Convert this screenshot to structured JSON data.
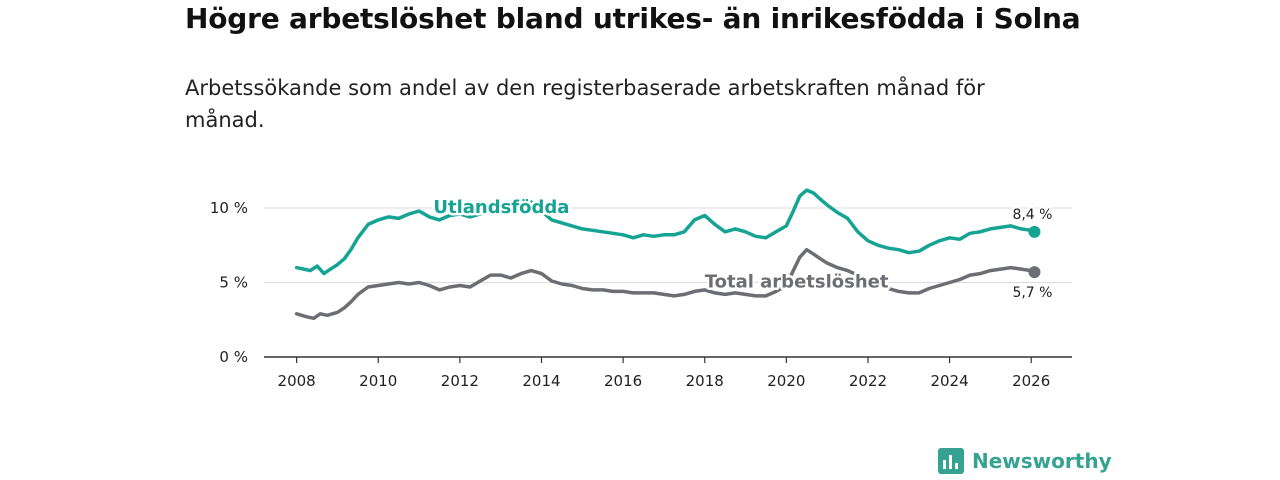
{
  "chart_data": {
    "type": "line",
    "title": "Högre arbetslöshet bland utrikes- än inrikesfödda i Solna",
    "subtitle": "Arbetssökande som andel av den registerbaserade arbetskraften månad för månad.",
    "xlabel": "",
    "ylabel": "",
    "xlim": [
      2007.2,
      2027.0
    ],
    "ylim": [
      0,
      10
    ],
    "x_ticks": [
      2008,
      2010,
      2012,
      2014,
      2016,
      2018,
      2020,
      2022,
      2024,
      2026
    ],
    "x_tick_labels": [
      "2008",
      "2010",
      "2012",
      "2014",
      "2016",
      "2018",
      "2020",
      "2022",
      "2024",
      "2026"
    ],
    "y_ticks": [
      0,
      5,
      10
    ],
    "y_tick_labels": [
      "0 %",
      "5 %",
      "10 %"
    ],
    "grid": true,
    "series": [
      {
        "name": "Utlandsfödda",
        "color": "#15a394",
        "end_label": "8,4 %",
        "x": [
          2008.0,
          2008.33,
          2008.5,
          2008.67,
          2008.83,
          2009.0,
          2009.17,
          2009.33,
          2009.5,
          2009.75,
          2010.0,
          2010.25,
          2010.5,
          2010.75,
          2011.0,
          2011.25,
          2011.5,
          2011.75,
          2012.0,
          2012.25,
          2012.5,
          2012.75,
          2013.0,
          2013.25,
          2013.5,
          2013.75,
          2014.0,
          2014.25,
          2014.5,
          2014.75,
          2015.0,
          2015.25,
          2015.5,
          2015.75,
          2016.0,
          2016.25,
          2016.5,
          2016.75,
          2017.0,
          2017.25,
          2017.5,
          2017.75,
          2018.0,
          2018.25,
          2018.5,
          2018.75,
          2019.0,
          2019.25,
          2019.5,
          2019.75,
          2020.0,
          2020.17,
          2020.33,
          2020.5,
          2020.67,
          2020.83,
          2021.0,
          2021.25,
          2021.5,
          2021.75,
          2022.0,
          2022.25,
          2022.5,
          2022.75,
          2023.0,
          2023.25,
          2023.5,
          2023.75,
          2024.0,
          2024.25,
          2024.5,
          2024.75,
          2025.0,
          2025.25,
          2025.5,
          2025.75,
          2026.0,
          2026.08
        ],
        "values": [
          6.0,
          5.8,
          6.1,
          5.6,
          5.9,
          6.2,
          6.6,
          7.2,
          8.0,
          8.9,
          9.2,
          9.4,
          9.3,
          9.6,
          9.8,
          9.4,
          9.2,
          9.5,
          9.6,
          9.4,
          9.6,
          10.0,
          10.2,
          10.1,
          10.3,
          10.4,
          9.8,
          9.2,
          9.0,
          8.8,
          8.6,
          8.5,
          8.4,
          8.3,
          8.2,
          8.0,
          8.2,
          8.1,
          8.2,
          8.2,
          8.4,
          9.2,
          9.5,
          8.9,
          8.4,
          8.6,
          8.4,
          8.1,
          8.0,
          8.4,
          8.8,
          9.8,
          10.8,
          11.2,
          11.0,
          10.6,
          10.2,
          9.7,
          9.3,
          8.4,
          7.8,
          7.5,
          7.3,
          7.2,
          7.0,
          7.1,
          7.5,
          7.8,
          8.0,
          7.9,
          8.3,
          8.4,
          8.6,
          8.7,
          8.8,
          8.6,
          8.5,
          8.4
        ]
      },
      {
        "name": "Total arbetslöshet",
        "color": "#6d6e74",
        "end_label": "5,7 %",
        "x": [
          2008.0,
          2008.25,
          2008.42,
          2008.58,
          2008.75,
          2009.0,
          2009.17,
          2009.33,
          2009.5,
          2009.75,
          2010.0,
          2010.25,
          2010.5,
          2010.75,
          2011.0,
          2011.25,
          2011.5,
          2011.75,
          2012.0,
          2012.25,
          2012.5,
          2012.75,
          2013.0,
          2013.25,
          2013.5,
          2013.75,
          2014.0,
          2014.25,
          2014.5,
          2014.75,
          2015.0,
          2015.25,
          2015.5,
          2015.75,
          2016.0,
          2016.25,
          2016.5,
          2016.75,
          2017.0,
          2017.25,
          2017.5,
          2017.75,
          2018.0,
          2018.25,
          2018.5,
          2018.75,
          2019.0,
          2019.25,
          2019.5,
          2019.75,
          2020.0,
          2020.17,
          2020.33,
          2020.5,
          2020.67,
          2020.83,
          2021.0,
          2021.25,
          2021.5,
          2021.75,
          2022.0,
          2022.25,
          2022.5,
          2022.75,
          2023.0,
          2023.25,
          2023.5,
          2023.75,
          2024.0,
          2024.25,
          2024.5,
          2024.75,
          2025.0,
          2025.25,
          2025.5,
          2025.75,
          2026.0,
          2026.08
        ],
        "values": [
          2.9,
          2.7,
          2.6,
          2.9,
          2.8,
          3.0,
          3.3,
          3.7,
          4.2,
          4.7,
          4.8,
          4.9,
          5.0,
          4.9,
          5.0,
          4.8,
          4.5,
          4.7,
          4.8,
          4.7,
          5.1,
          5.5,
          5.5,
          5.3,
          5.6,
          5.8,
          5.6,
          5.1,
          4.9,
          4.8,
          4.6,
          4.5,
          4.5,
          4.4,
          4.4,
          4.3,
          4.3,
          4.3,
          4.2,
          4.1,
          4.2,
          4.4,
          4.5,
          4.3,
          4.2,
          4.3,
          4.2,
          4.1,
          4.1,
          4.4,
          4.8,
          5.8,
          6.7,
          7.2,
          6.9,
          6.6,
          6.3,
          6.0,
          5.8,
          5.5,
          5.0,
          4.8,
          4.6,
          4.4,
          4.3,
          4.3,
          4.6,
          4.8,
          5.0,
          5.2,
          5.5,
          5.6,
          5.8,
          5.9,
          6.0,
          5.9,
          5.8,
          5.7
        ]
      }
    ],
    "annotations": [
      "Utlandsfödda",
      "Total arbetslöshet"
    ]
  },
  "branding": {
    "name": "Newsworthy",
    "color": "#36a392"
  }
}
